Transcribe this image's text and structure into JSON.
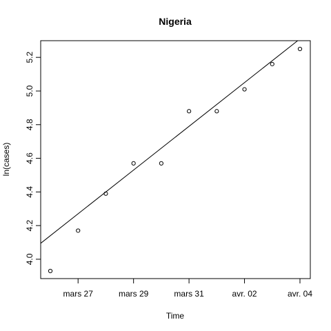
{
  "chart_data": {
    "type": "scatter",
    "title": "Nigeria",
    "xlabel": "Time",
    "ylabel": "ln(cases)",
    "x_tick_labels": [
      "mars 27",
      "mars 29",
      "mars 31",
      "avr. 02",
      "avr. 04"
    ],
    "y_tick_labels": [
      "4.0",
      "4.2",
      "4.4",
      "4.6",
      "4.8",
      "5.0",
      "5.2"
    ],
    "y_ticks": [
      4.0,
      4.2,
      4.4,
      4.6,
      4.8,
      5.0,
      5.2
    ],
    "xlim": [
      "2020-03-25",
      "2020-04-04"
    ],
    "ylim": [
      3.92,
      5.3
    ],
    "grid": false,
    "x": [
      "2020-03-26",
      "2020-03-27",
      "2020-03-28",
      "2020-03-29",
      "2020-03-30",
      "2020-03-31",
      "2020-04-01",
      "2020-04-02",
      "2020-04-03",
      "2020-04-04"
    ],
    "y": [
      3.93,
      4.17,
      4.39,
      4.57,
      4.57,
      4.88,
      4.88,
      5.01,
      5.16,
      5.25
    ],
    "fit_line": {
      "x": [
        "2020-03-25",
        "2020-04-04"
      ],
      "y": [
        4.01,
        5.31
      ]
    }
  }
}
